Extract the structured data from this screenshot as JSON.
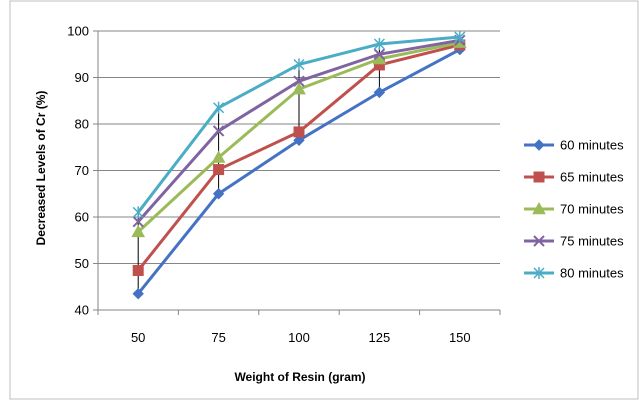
{
  "chart_data": {
    "type": "line",
    "title": "",
    "xlabel": "Weight of Resin (gram)",
    "ylabel": "Decreased Levels of Cr (%)",
    "categories": [
      "50",
      "75",
      "100",
      "125",
      "150"
    ],
    "ylim": [
      40,
      100
    ],
    "yticks": [
      40,
      50,
      60,
      70,
      80,
      90,
      100
    ],
    "grid": "horizontal",
    "legend_position": "right",
    "series": [
      {
        "name": "60 minutes",
        "color": "#4472C4",
        "marker": "diamond",
        "values": [
          43.5,
          65,
          76.5,
          86.8,
          96
        ]
      },
      {
        "name": "65 minutes",
        "color": "#C0504D",
        "marker": "square",
        "values": [
          48.5,
          70.2,
          78.3,
          92.7,
          97
        ]
      },
      {
        "name": "70 minutes",
        "color": "#9BBB59",
        "marker": "triangle",
        "values": [
          56.8,
          72.8,
          87.5,
          94,
          97.5
        ]
      },
      {
        "name": "75 minutes",
        "color": "#8064A2",
        "marker": "x",
        "values": [
          59,
          78.5,
          89.2,
          95,
          98
        ]
      },
      {
        "name": "80 minutes",
        "color": "#4BACC6",
        "marker": "star",
        "values": [
          61,
          83.5,
          92.8,
          97.2,
          98.7
        ]
      }
    ],
    "error_bars": [
      {
        "category": "50",
        "low": 43.5,
        "high": 61
      },
      {
        "category": "75",
        "low": 65,
        "high": 83.5
      },
      {
        "category": "100",
        "low": 76.5,
        "high": 92.8
      },
      {
        "category": "125",
        "low": 86.8,
        "high": 97.2
      },
      {
        "category": "150",
        "low": 96,
        "high": 98.7
      }
    ]
  }
}
